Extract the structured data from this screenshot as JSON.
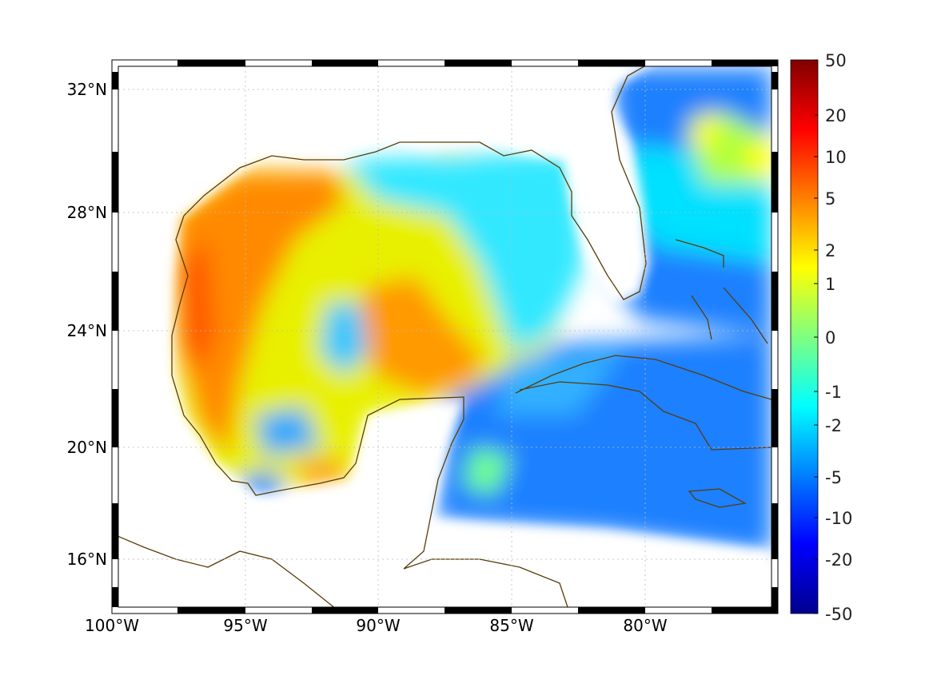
{
  "map": {
    "projection": "mercator",
    "lon_range": [
      -100,
      -75
    ],
    "lat_range": [
      14.3,
      33
    ],
    "lon_ticks": [
      {
        "value": -100,
        "label": "100°W"
      },
      {
        "value": -95,
        "label": "95°W"
      },
      {
        "value": -90,
        "label": "90°W"
      },
      {
        "value": -85,
        "label": "85°W"
      },
      {
        "value": -80,
        "label": "80°W"
      }
    ],
    "lat_ticks": [
      {
        "value": 32,
        "label": "32°N"
      },
      {
        "value": 28,
        "label": "28°N"
      },
      {
        "value": 24,
        "label": "24°N"
      },
      {
        "value": 20,
        "label": "20°N"
      },
      {
        "value": 16,
        "label": "16°N"
      }
    ],
    "coastline_color": "#5a3c0a"
  },
  "colorbar": {
    "colormap": "jet",
    "ticks": [
      {
        "value": 50,
        "label": "50"
      },
      {
        "value": 20,
        "label": "20"
      },
      {
        "value": 10,
        "label": "10"
      },
      {
        "value": 5,
        "label": "5"
      },
      {
        "value": 2,
        "label": "2"
      },
      {
        "value": 1,
        "label": "1"
      },
      {
        "value": 0,
        "label": "0"
      },
      {
        "value": -1,
        "label": "-1"
      },
      {
        "value": -2,
        "label": "-2"
      },
      {
        "value": -5,
        "label": "-5"
      },
      {
        "value": -10,
        "label": "-10"
      },
      {
        "value": -20,
        "label": "-20"
      },
      {
        "value": -50,
        "label": "-50"
      }
    ]
  }
}
